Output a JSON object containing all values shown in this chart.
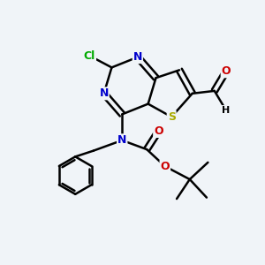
{
  "bg_color": "#f0f4f8",
  "atom_colors": {
    "C": "#000000",
    "N": "#0000cc",
    "O": "#cc0000",
    "S": "#aaaa00",
    "Cl": "#00aa00",
    "H": "#000000"
  },
  "bond_color": "#000000",
  "bond_width": 1.8,
  "figsize": [
    3.0,
    3.0
  ],
  "dpi": 100
}
